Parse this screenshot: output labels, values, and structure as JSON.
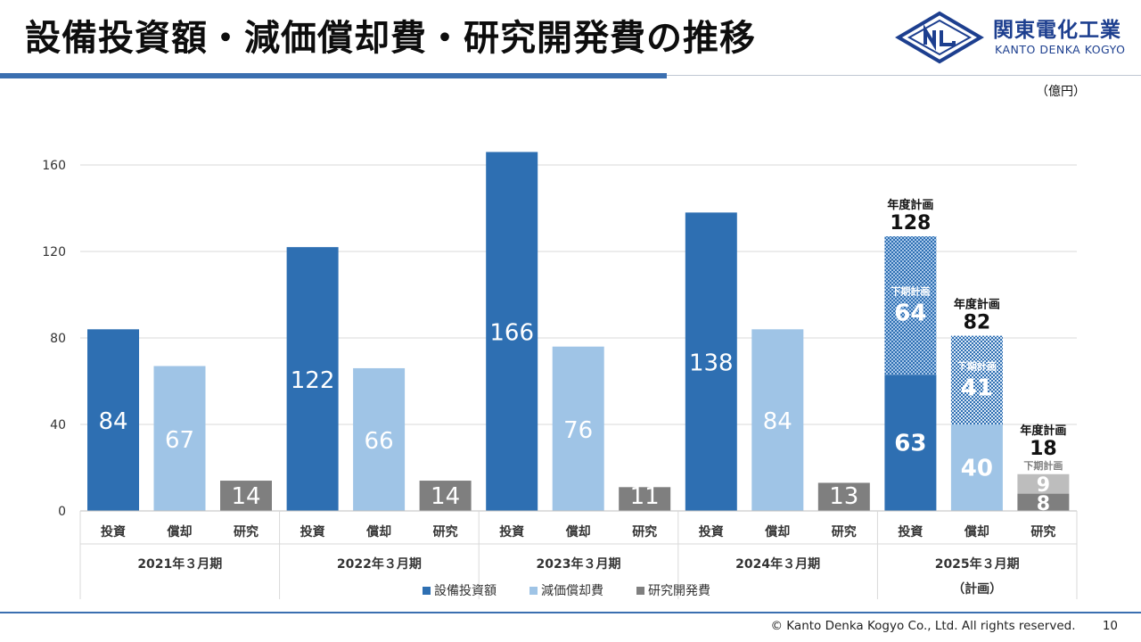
{
  "title": "設備投資額・減価償却費・研究開発費の推移",
  "logo": {
    "name_ja": "関東電化工業",
    "name_en": "KANTO DENKA KOGYO"
  },
  "unit": "（億円）",
  "footer": {
    "copyright": "© Kanto Denka Kogyo Co., Ltd. All rights reserved.",
    "page": "10"
  },
  "colors": {
    "invest": "#2e6fb2",
    "depreciation": "#9fc4e6",
    "research": "#7f7f7f",
    "accent_rule": "#3b6fb0"
  },
  "chart_data": {
    "type": "bar",
    "ylim": [
      0,
      180
    ],
    "yticks": [
      0,
      40,
      80,
      120,
      160
    ],
    "grid": true,
    "legend_position": "bottom",
    "series": [
      {
        "key": "invest",
        "name": "設備投資額"
      },
      {
        "key": "depreciation",
        "name": "減価償却費"
      },
      {
        "key": "research",
        "name": "研究開発費"
      }
    ],
    "bar_labels": [
      "投資",
      "償却",
      "研究"
    ],
    "groups": [
      {
        "label": "2021年３月期",
        "sublabel": "",
        "values": [
          84,
          67,
          14
        ]
      },
      {
        "label": "2022年３月期",
        "sublabel": "",
        "values": [
          122,
          66,
          14
        ]
      },
      {
        "label": "2023年３月期",
        "sublabel": "",
        "values": [
          166,
          76,
          11
        ]
      },
      {
        "label": "2024年３月期",
        "sublabel": "",
        "values": [
          138,
          84,
          13
        ]
      },
      {
        "label": "2025年３月期",
        "sublabel": "（計画）",
        "values": [
          63,
          40,
          8
        ],
        "plan_second_half": [
          64,
          41,
          9
        ],
        "plan_totals": [
          128,
          82,
          18
        ],
        "plan_total_label": "年度計画",
        "plan_half_label": "下期計画"
      }
    ]
  }
}
